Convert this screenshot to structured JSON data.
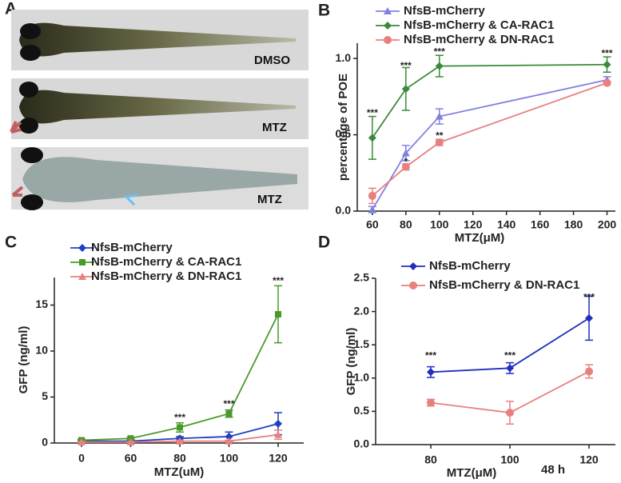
{
  "panel_labels": [
    "A",
    "B",
    "C",
    "D"
  ],
  "images": [
    {
      "label": "DMSO"
    },
    {
      "label": "MTZ"
    },
    {
      "label": "MTZ"
    }
  ],
  "chart_data": [
    {
      "type": "line",
      "x_label": "MTZ(μM)",
      "y_label": "percentage of POE",
      "xlim": [
        51,
        205
      ],
      "xticks": [
        60,
        80,
        100,
        120,
        140,
        160,
        180,
        200
      ],
      "ylim": [
        0,
        1.1
      ],
      "yticks": [
        {
          "value": 0,
          "label": "0.0"
        },
        {
          "value": 0.5,
          "label": "0.5"
        },
        {
          "value": 1,
          "label": "1.0"
        }
      ],
      "x": [
        60,
        80,
        100,
        200
      ],
      "series": [
        {
          "name": "NfsB-mCherry",
          "color": "#8080e0",
          "marker": "triangle",
          "values": [
            0.01,
            0.38,
            0.62,
            0.86
          ],
          "errors": [
            0.02,
            0.05,
            0.05,
            0.02
          ]
        },
        {
          "name": "NfsB-mCherry & CA-RAC1",
          "color": "#3a8a3a",
          "marker": "diamond",
          "values": [
            0.48,
            0.8,
            0.95,
            0.96
          ],
          "errors": [
            0.14,
            0.14,
            0.07,
            0.05
          ]
        },
        {
          "name": "NfsB-mCherry & DN-RAC1",
          "color": "#e88080",
          "marker": "circle",
          "values": [
            0.1,
            0.29,
            0.45,
            0.84
          ],
          "errors": [
            0.05,
            0.02,
            0.02,
            0.01
          ]
        }
      ],
      "annotations": [
        {
          "text": "***",
          "x": 60,
          "y": 0.64
        },
        {
          "text": "***",
          "x": 80,
          "y": 0.95
        },
        {
          "text": "***",
          "x": 100,
          "y": 1.04
        },
        {
          "text": "***",
          "x": 200,
          "y": 1.03
        },
        {
          "text": "*",
          "x": 80,
          "y": 0.32
        },
        {
          "text": "**",
          "x": 100,
          "y": 0.49
        }
      ]
    },
    {
      "type": "line",
      "x_label": "MTZ(uM)",
      "y_label": "GFP (ng/ml)",
      "categories": [
        "0",
        "60",
        "80",
        "100",
        "120"
      ],
      "ylim": [
        0,
        18
      ],
      "yticks": [
        0,
        5,
        10,
        15
      ],
      "series": [
        {
          "name": "NfsB-mCherry",
          "color": "#1f3fbf",
          "marker": "diamond",
          "values": [
            0.2,
            0.2,
            0.5,
            0.7,
            2.1
          ],
          "errors": [
            0.1,
            0.1,
            0.2,
            0.5,
            1.2
          ]
        },
        {
          "name": "NfsB-mCherry & CA-RAC1",
          "color": "#4a9a2a",
          "marker": "square",
          "values": [
            0.3,
            0.5,
            1.7,
            3.2,
            14
          ],
          "errors": [
            0.1,
            0.1,
            0.5,
            0.4,
            3.1
          ]
        },
        {
          "name": "NfsB-mCherry & DN-RAC1",
          "color": "#e88080",
          "marker": "triangle",
          "values": [
            0.1,
            0.1,
            0.2,
            0.2,
            0.9
          ],
          "errors": [
            0.05,
            0.05,
            0.1,
            0.1,
            0.5
          ]
        }
      ],
      "annotations": [
        {
          "text": "***",
          "x": "80",
          "y": 2.7
        },
        {
          "text": "***",
          "x": "100",
          "y": 4.2
        },
        {
          "text": "***",
          "x": "120",
          "y": 17.6
        }
      ]
    },
    {
      "type": "line",
      "x_label": "MTZ(μM)",
      "note": "48 h",
      "y_label": "GFP (ng/ml)",
      "categories": [
        "80",
        "100",
        "120"
      ],
      "ylim": [
        0,
        2.5
      ],
      "yticks": [
        {
          "value": 0,
          "label": "0.0"
        },
        {
          "value": 0.5,
          "label": "0.5"
        },
        {
          "value": 1,
          "label": "1.0"
        },
        {
          "value": 1.5,
          "label": "1.5"
        },
        {
          "value": 2,
          "label": "2.0"
        },
        {
          "value": 2.5,
          "label": "2.5"
        }
      ],
      "series": [
        {
          "name": "NfsB-mCherry",
          "color": "#1f2fbf",
          "marker": "diamond",
          "values": [
            1.09,
            1.15,
            1.9
          ],
          "errors": [
            0.08,
            0.08,
            0.33
          ]
        },
        {
          "name": "NfsB-mCherry & DN-RAC1",
          "color": "#e88080",
          "marker": "circle",
          "values": [
            0.63,
            0.48,
            1.1
          ],
          "errors": [
            0.05,
            0.17,
            0.1
          ]
        }
      ],
      "annotations": [
        {
          "text": "***",
          "x": "80",
          "y": 1.33
        },
        {
          "text": "***",
          "x": "100",
          "y": 1.33
        },
        {
          "text": "***",
          "x": "120",
          "y": 2.21
        }
      ]
    }
  ]
}
